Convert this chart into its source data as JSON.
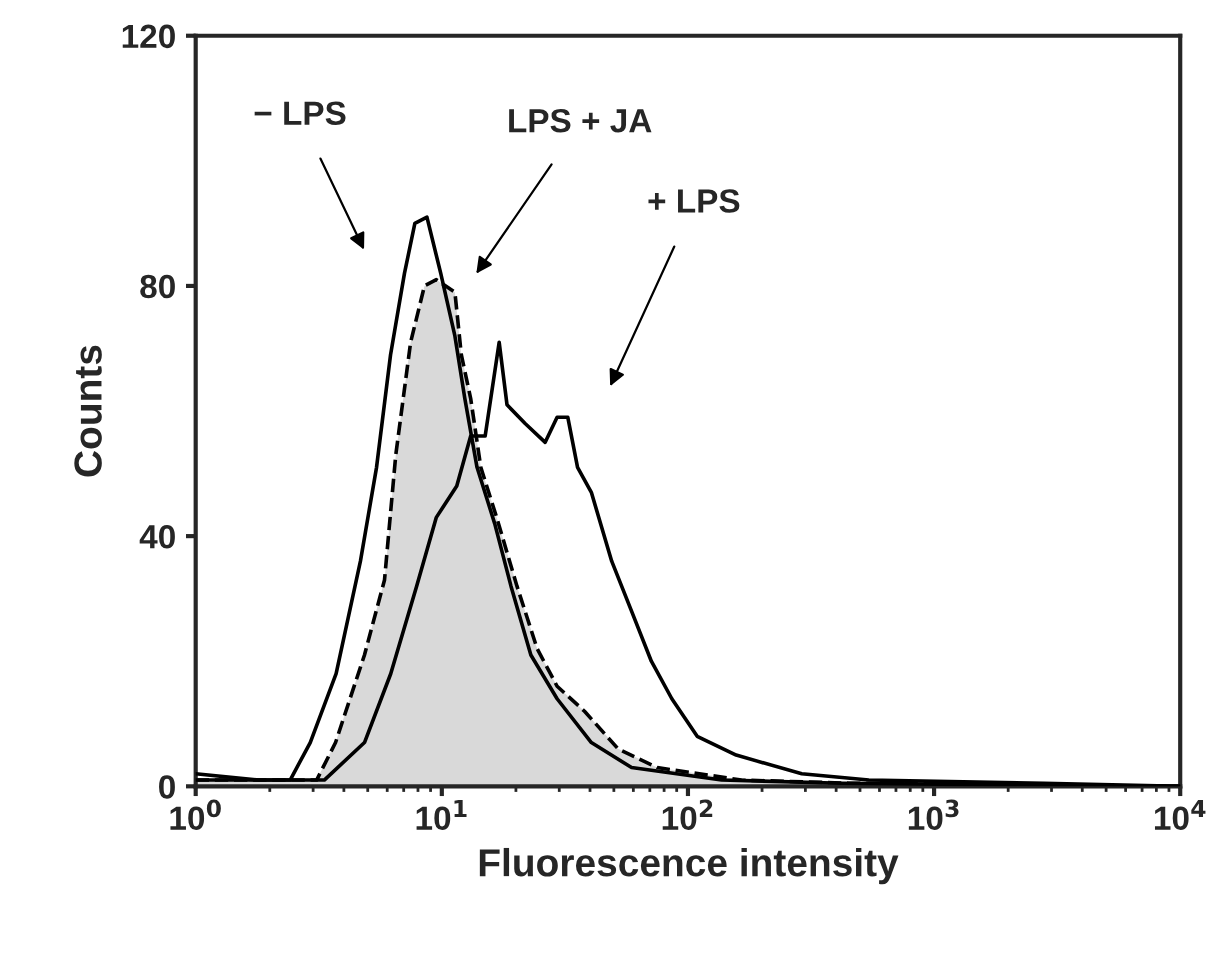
{
  "chart_data": {
    "type": "line",
    "xlabel": "Fluorescence intensity",
    "ylabel": "Counts",
    "log": "x",
    "xlim": [
      1,
      10000
    ],
    "ylim": [
      0,
      120
    ],
    "xticks": [
      {
        "value": 1,
        "label": "10$^{0}$"
      },
      {
        "value": 10,
        "label": "10$^{1}$"
      },
      {
        "value": 100,
        "label": "10$^{2}$"
      },
      {
        "value": 1000,
        "label": "10$^{3}$"
      },
      {
        "value": 10000,
        "label": "10$^{4}$"
      }
    ],
    "yticks": [
      0,
      40,
      80,
      120
    ],
    "grid": false,
    "legend": false,
    "annotations": [
      "− LPS",
      "LPS + JA",
      "+ LPS"
    ],
    "series": [
      {
        "type": "area",
        "color": "#d9d9d9",
        "line_style": "dashed",
        "x": [
          1,
          3.1,
          3.7,
          4.85,
          5.85,
          6.5,
          7.47,
          8.5,
          9.5,
          11.3,
          12,
          13.1,
          14.4,
          16.7,
          20.2,
          24.4,
          29.4,
          38,
          52,
          75,
          165,
          450,
          10000
        ],
        "values": [
          1,
          1,
          7,
          21,
          33,
          53,
          71,
          80,
          81,
          79,
          69,
          62,
          51,
          43,
          32,
          22,
          16,
          12,
          6,
          3,
          1,
          0.5,
          0
        ]
      },
      {
        "color": "#000000",
        "line_style": "solid",
        "x": [
          1,
          1.8,
          2.42,
          2.92,
          3.72,
          4.67,
          5.43,
          6.19,
          7.05,
          7.77,
          8.7,
          9.9,
          11.3,
          12.4,
          13.9,
          16.4,
          19.1,
          23,
          29.4,
          40.5,
          59,
          137,
          422,
          10000
        ],
        "values": [
          2,
          1,
          1,
          7,
          18,
          36,
          51,
          69,
          82,
          90,
          91,
          82,
          72,
          62,
          51,
          42,
          32,
          21,
          14,
          7,
          3,
          1,
          0.5,
          0
        ]
      },
      {
        "color": "#000000",
        "line_style": "solid",
        "x": [
          1,
          3.33,
          4.85,
          6.2,
          7.9,
          9.5,
          11.5,
          13.1,
          15,
          17.1,
          18.4,
          21.8,
          26.3,
          29.4,
          32.5,
          35.6,
          40.5,
          49,
          59,
          71,
          86,
          109,
          157,
          290,
          543,
          2800,
          10000
        ],
        "values": [
          1,
          1,
          7,
          18,
          32,
          43,
          48,
          56,
          56,
          71,
          61,
          58,
          55,
          59,
          59,
          51,
          47,
          36,
          28,
          20,
          14,
          8,
          5,
          2,
          1,
          0.5,
          0
        ]
      }
    ]
  }
}
